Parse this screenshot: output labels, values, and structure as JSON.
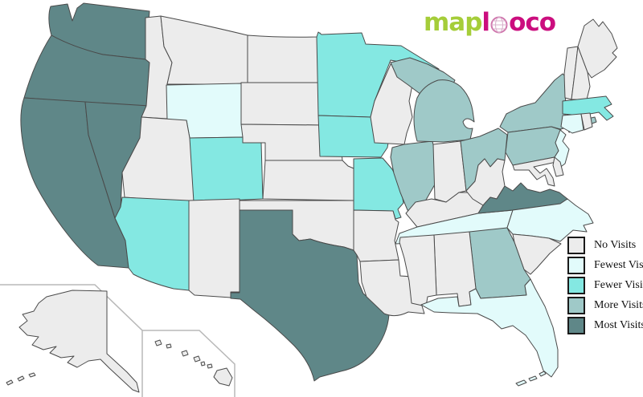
{
  "logo": {
    "map_text": "map",
    "l_text": "l",
    "co_text": "oco",
    "map_color": "#a5cd39",
    "loco_color": "#cb0e7e"
  },
  "legend": {
    "swatch_border": "#1a1a1a",
    "items": [
      {
        "id": "no",
        "label": "No Visits",
        "color": "#ececec"
      },
      {
        "id": "fewest",
        "label": "Fewest Visits",
        "color": "#e2fbfb"
      },
      {
        "id": "fewer",
        "label": "Fewer Visits",
        "color": "#84e8e2"
      },
      {
        "id": "more",
        "label": "More Visits",
        "color": "#9fc9c8"
      },
      {
        "id": "most",
        "label": "Most Visits",
        "color": "#5f8788"
      }
    ]
  },
  "map": {
    "border_color": "#4a4a4a",
    "inset_border_color": "#b8b8b8",
    "states": [
      {
        "id": "WA",
        "name": "Washington",
        "level": "most"
      },
      {
        "id": "OR",
        "name": "Oregon",
        "level": "most"
      },
      {
        "id": "CA",
        "name": "California",
        "level": "most"
      },
      {
        "id": "NV",
        "name": "Nevada",
        "level": "most"
      },
      {
        "id": "TX",
        "name": "Texas",
        "level": "most"
      },
      {
        "id": "VA",
        "name": "Virginia",
        "level": "most"
      },
      {
        "id": "NY",
        "name": "New York",
        "level": "more"
      },
      {
        "id": "PA",
        "name": "Pennsylvania",
        "level": "more"
      },
      {
        "id": "OH",
        "name": "Ohio",
        "level": "more"
      },
      {
        "id": "MI",
        "name": "Michigan",
        "level": "more"
      },
      {
        "id": "IL",
        "name": "Illinois",
        "level": "more"
      },
      {
        "id": "GA",
        "name": "Georgia",
        "level": "more"
      },
      {
        "id": "MA",
        "name": "Massachusetts",
        "level": "fewer"
      },
      {
        "id": "MN",
        "name": "Minnesota",
        "level": "fewer"
      },
      {
        "id": "IA",
        "name": "Iowa",
        "level": "fewer"
      },
      {
        "id": "MO",
        "name": "Missouri",
        "level": "fewer"
      },
      {
        "id": "CO",
        "name": "Colorado",
        "level": "fewer"
      },
      {
        "id": "AZ",
        "name": "Arizona",
        "level": "fewer"
      },
      {
        "id": "CT",
        "name": "Connecticut",
        "level": "fewest"
      },
      {
        "id": "NJ",
        "name": "New Jersey",
        "level": "fewest"
      },
      {
        "id": "WY",
        "name": "Wyoming",
        "level": "fewest"
      },
      {
        "id": "TN",
        "name": "Tennessee",
        "level": "fewest"
      },
      {
        "id": "NC",
        "name": "North Carolina",
        "level": "fewest"
      },
      {
        "id": "FL",
        "name": "Florida",
        "level": "fewest"
      },
      {
        "id": "ME",
        "name": "Maine",
        "level": "no"
      },
      {
        "id": "NH",
        "name": "New Hampshire",
        "level": "no"
      },
      {
        "id": "VT",
        "name": "Vermont",
        "level": "no"
      },
      {
        "id": "RI",
        "name": "Rhode Island",
        "level": "no"
      },
      {
        "id": "DE",
        "name": "Delaware",
        "level": "no"
      },
      {
        "id": "MD",
        "name": "Maryland",
        "level": "no"
      },
      {
        "id": "WV",
        "name": "West Virginia",
        "level": "no"
      },
      {
        "id": "KY",
        "name": "Kentucky",
        "level": "no"
      },
      {
        "id": "IN",
        "name": "Indiana",
        "level": "no"
      },
      {
        "id": "WI",
        "name": "Wisconsin",
        "level": "no"
      },
      {
        "id": "SC",
        "name": "South Carolina",
        "level": "no"
      },
      {
        "id": "AL",
        "name": "Alabama",
        "level": "no"
      },
      {
        "id": "MS",
        "name": "Mississippi",
        "level": "no"
      },
      {
        "id": "LA",
        "name": "Louisiana",
        "level": "no"
      },
      {
        "id": "AR",
        "name": "Arkansas",
        "level": "no"
      },
      {
        "id": "OK",
        "name": "Oklahoma",
        "level": "no"
      },
      {
        "id": "KS",
        "name": "Kansas",
        "level": "no"
      },
      {
        "id": "NE",
        "name": "Nebraska",
        "level": "no"
      },
      {
        "id": "SD",
        "name": "South Dakota",
        "level": "no"
      },
      {
        "id": "ND",
        "name": "North Dakota",
        "level": "no"
      },
      {
        "id": "MT",
        "name": "Montana",
        "level": "no"
      },
      {
        "id": "ID",
        "name": "Idaho",
        "level": "no"
      },
      {
        "id": "UT",
        "name": "Utah",
        "level": "no"
      },
      {
        "id": "NM",
        "name": "New Mexico",
        "level": "no"
      },
      {
        "id": "AK",
        "name": "Alaska",
        "level": "no"
      },
      {
        "id": "HI",
        "name": "Hawaii",
        "level": "no"
      }
    ]
  }
}
